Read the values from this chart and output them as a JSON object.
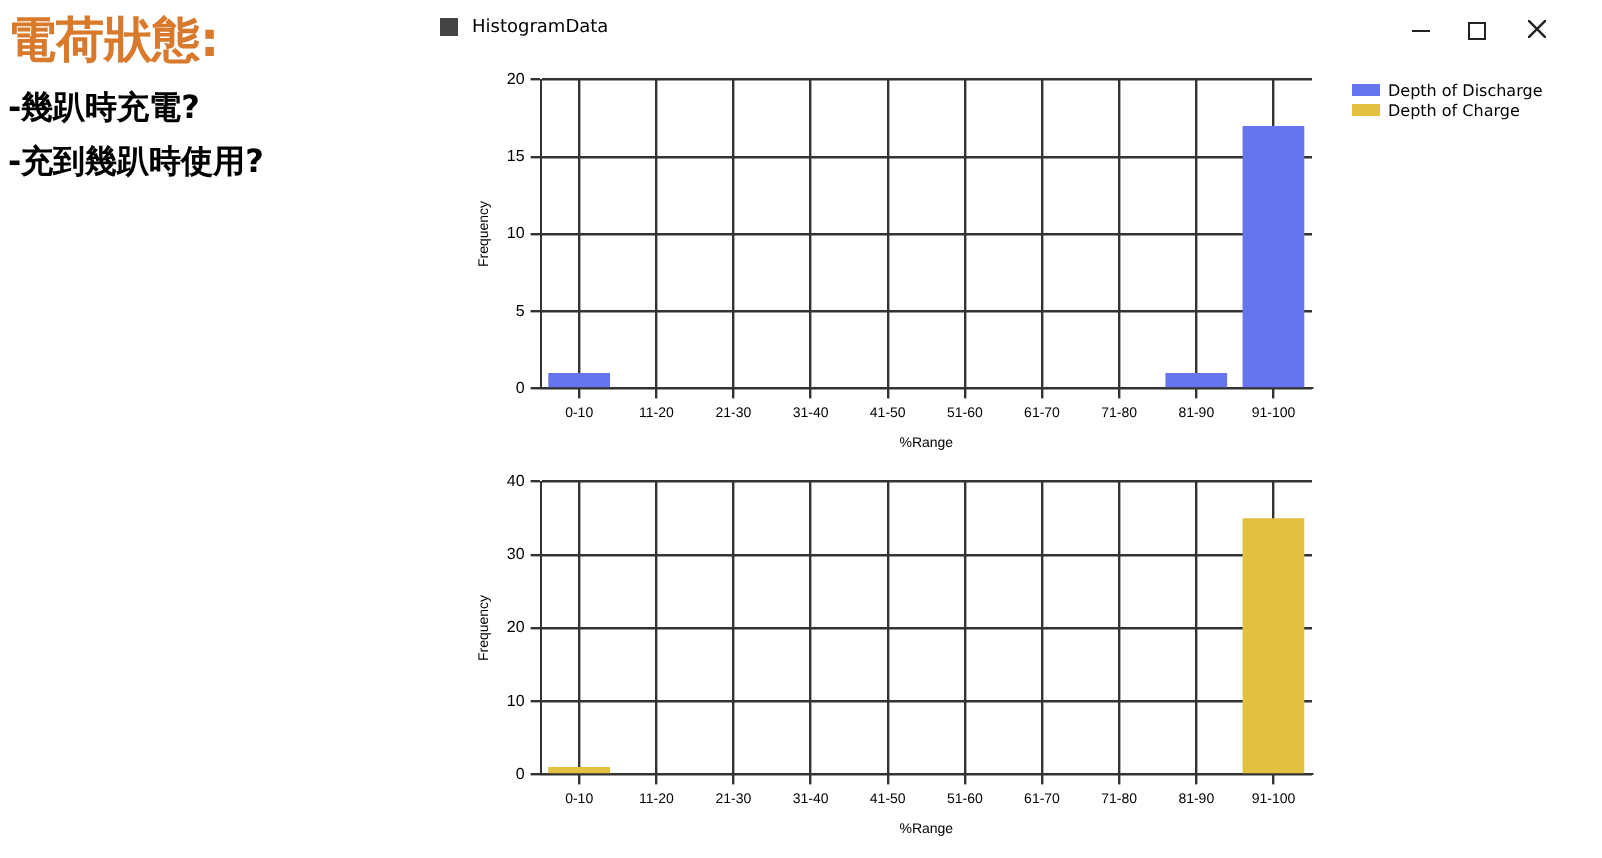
{
  "chart_data": [
    {
      "type": "other",
      "title": "電荷狀態:",
      "annotations": [
        "-幾趴時充電?",
        "-充到幾趴時使用?"
      ]
    },
    {
      "type": "bar",
      "title": "HistogramData",
      "categories": [
        "0-10",
        "11-20",
        "21-30",
        "31-40",
        "41-50",
        "51-60",
        "61-70",
        "71-80",
        "81-90",
        "91-100"
      ],
      "series": [
        {
          "name": "Depth of Discharge",
          "color": "#6674ee",
          "values": [
            1,
            0,
            0,
            0,
            0,
            0,
            0,
            0,
            1,
            17
          ]
        }
      ],
      "xlabel": "%Range",
      "ylabel": "Frequency",
      "ylim": [
        0,
        20
      ],
      "yticks": [
        0,
        5,
        10,
        15,
        20
      ],
      "grid": true,
      "legend": "top right"
    },
    {
      "type": "bar",
      "categories": [
        "0-10",
        "11-20",
        "21-30",
        "31-40",
        "41-50",
        "51-60",
        "61-70",
        "71-80",
        "81-90",
        "91-100"
      ],
      "series": [
        {
          "name": "Depth of Charge",
          "color": "#e2c040",
          "values": [
            1,
            0,
            0,
            0,
            0,
            0,
            0,
            0,
            0,
            35
          ]
        }
      ],
      "xlabel": "%Range",
      "ylabel": "Frequency",
      "ylim": [
        0,
        40
      ],
      "yticks": [
        0,
        10,
        20,
        30,
        40
      ],
      "grid": true,
      "legend": "top right"
    }
  ]
}
